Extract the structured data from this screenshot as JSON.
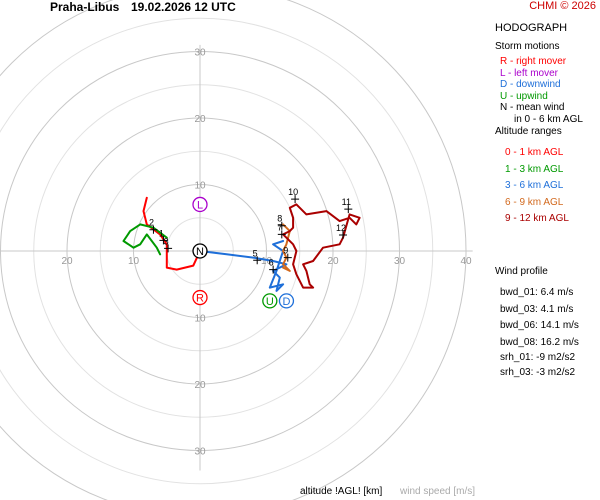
{
  "header": {
    "station": "Praha-Libus",
    "datetime": "19.02.2026 12 UTC",
    "copyright": "CHMI © 2026"
  },
  "side": {
    "title": "HODOGRAPH",
    "storm_title": "Storm motions",
    "storm_items": [
      {
        "text": "R - right mover",
        "color": "#ff0000"
      },
      {
        "text": "L - left mover",
        "color": "#aa00cc"
      },
      {
        "text": "D - downwind",
        "color": "#1e6fd9"
      },
      {
        "text": "U - upwind",
        "color": "#009900"
      },
      {
        "text": "N - mean wind",
        "color": "#000000"
      },
      {
        "text": "in 0 - 6 km AGL",
        "color": "#000000"
      }
    ],
    "alt_title": "Altitude ranges",
    "alt_items": [
      {
        "text": "0 - 1 km AGL",
        "color": "#ff0000"
      },
      {
        "text": "1 - 3 km AGL",
        "color": "#009900"
      },
      {
        "text": "3 - 6 km AGL",
        "color": "#1e6fd9"
      },
      {
        "text": "6 - 9 km AGL",
        "color": "#d2691e"
      },
      {
        "text": "9 - 12 km AGL",
        "color": "#aa0000"
      }
    ],
    "profile_title": "Wind profile",
    "profile_items": [
      "bwd_01: 6.4 m/s",
      "bwd_03: 4.1 m/s",
      "bwd_06: 14.1 m/s",
      "bwd_08: 16.2 m/s",
      "srh_01: -9 m2/s2",
      "srh_03: -3 m2/s2"
    ]
  },
  "bottom": {
    "altitude": "altitude !AGL! [km]",
    "speed": "wind speed [m/s]"
  },
  "chart_data": {
    "type": "line",
    "title": "HODOGRAPH",
    "rings": [
      10,
      20,
      30,
      40
    ],
    "x_ticks": [
      -20,
      -10,
      10,
      20,
      30,
      40
    ],
    "x_tick_labels": [
      "20",
      "10",
      "10",
      "20",
      "30",
      "40"
    ],
    "y_ticks": [
      30,
      20,
      10,
      -10,
      -20,
      -30
    ],
    "y_tick_labels": [
      "30",
      "20",
      "10",
      "10",
      "20",
      "30"
    ],
    "units": "m/s",
    "series": [
      {
        "name": "0 - 1 km AGL",
        "color": "#ff0000",
        "points": [
          [
            -8.0,
            8.0
          ],
          [
            -8.5,
            6.0
          ],
          [
            -8.0,
            4.0
          ],
          [
            -6.0,
            2.5
          ],
          [
            -5.0,
            1.0
          ],
          [
            -5.0,
            -2.5
          ],
          [
            -3.5,
            -2.8
          ],
          [
            -1.0,
            -2.2
          ],
          [
            0.0,
            0.0
          ]
        ]
      },
      {
        "name": "1 - 3 km AGL",
        "color": "#009900",
        "points": [
          [
            -5.0,
            2.0
          ],
          [
            -7.0,
            3.5
          ],
          [
            -9.0,
            4.0
          ],
          [
            -10.5,
            3.0
          ],
          [
            -11.5,
            1.5
          ],
          [
            -10.0,
            0.5
          ],
          [
            -9.0,
            1.0
          ],
          [
            -8.0,
            2.5
          ],
          [
            -6.5,
            0.5
          ],
          [
            -6.0,
            -0.5
          ]
        ]
      },
      {
        "name": "3 - 6 km AGL",
        "color": "#1e6fd9",
        "points": [
          [
            0.0,
            0.0
          ],
          [
            4.0,
            -0.5
          ],
          [
            8.0,
            -1.0
          ],
          [
            11.0,
            -1.5
          ],
          [
            13.0,
            -2.0
          ],
          [
            11.0,
            -3.0
          ],
          [
            12.0,
            -4.0
          ],
          [
            11.5,
            -6.0
          ],
          [
            12.5,
            -5.0
          ],
          [
            10.5,
            -5.5
          ],
          [
            11.5,
            -3.0
          ],
          [
            12.5,
            0.0
          ],
          [
            11.0,
            1.0
          ],
          [
            12.5,
            1.5
          ]
        ]
      },
      {
        "name": "6 - 9 km AGL",
        "color": "#d2691e",
        "points": [
          [
            12.5,
            -2.5
          ],
          [
            13.5,
            -3.0
          ],
          [
            12.5,
            -2.0
          ],
          [
            13.0,
            -1.0
          ],
          [
            12.5,
            0.0
          ],
          [
            13.0,
            1.0
          ],
          [
            13.5,
            3.0
          ],
          [
            12.5,
            4.0
          ]
        ]
      },
      {
        "name": "9 - 12 km AGL",
        "color": "#aa0000",
        "points": [
          [
            12.5,
            2.5
          ],
          [
            13.5,
            3.0
          ],
          [
            14.0,
            3.5
          ],
          [
            14.0,
            5.0
          ],
          [
            13.5,
            6.5
          ],
          [
            14.5,
            7.0
          ],
          [
            16.0,
            5.5
          ],
          [
            19.0,
            6.0
          ],
          [
            21.0,
            4.5
          ],
          [
            22.5,
            5.0
          ],
          [
            23.5,
            4.0
          ],
          [
            24.0,
            5.0
          ],
          [
            22.5,
            5.5
          ],
          [
            21.5,
            2.0
          ],
          [
            21.0,
            1.0
          ],
          [
            18.5,
            0.5
          ],
          [
            17.0,
            -1.5
          ],
          [
            15.5,
            -2.0
          ],
          [
            16.0,
            -3.0
          ],
          [
            16.5,
            -5.0
          ],
          [
            17.0,
            -5.5
          ],
          [
            15.5,
            -5.5
          ],
          [
            14.5,
            -3.5
          ],
          [
            14.0,
            -2.0
          ],
          [
            14.5,
            0.0
          ],
          [
            14.0,
            1.0
          ],
          [
            12.5,
            2.5
          ]
        ]
      }
    ],
    "height_labels": [
      {
        "t": "1",
        "x": -5.5,
        "y": 1.6
      },
      {
        "t": "2",
        "x": -7.0,
        "y": 3.2
      },
      {
        "t": "3",
        "x": -4.8,
        "y": 0.4
      },
      {
        "t": "5",
        "x": 8.6,
        "y": -1.4
      },
      {
        "t": "6",
        "x": 11.0,
        "y": -2.8
      },
      {
        "t": "7",
        "x": 12.3,
        "y": 2.5
      },
      {
        "t": "8",
        "x": 12.3,
        "y": 3.8
      },
      {
        "t": "9",
        "x": 13.2,
        "y": -1.0
      },
      {
        "t": "10",
        "x": 14.3,
        "y": 7.8
      },
      {
        "t": "11",
        "x": 22.3,
        "y": 6.3
      },
      {
        "t": "12",
        "x": 21.5,
        "y": 2.4
      }
    ],
    "storm_markers": [
      {
        "label": "R",
        "x": 0.0,
        "y": -7.0,
        "color": "#ff0000"
      },
      {
        "label": "L",
        "x": 0.0,
        "y": 7.0,
        "color": "#aa00cc"
      },
      {
        "label": "D",
        "x": 13.0,
        "y": -7.5,
        "color": "#1e6fd9"
      },
      {
        "label": "U",
        "x": 10.5,
        "y": -7.5,
        "color": "#009900"
      },
      {
        "label": "N",
        "x": 0.0,
        "y": 0.0,
        "color": "#000000"
      }
    ]
  }
}
